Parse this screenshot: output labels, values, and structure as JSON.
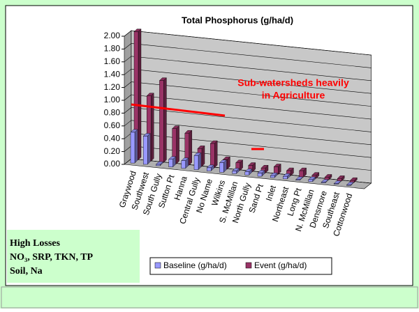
{
  "chart_data": {
    "type": "bar3d",
    "title": "Total Phosphorus (g/ha/d)",
    "categories": [
      "Graywood",
      "Southwest",
      "South Gully",
      "Sutton Pt",
      "Hanna",
      "Central Gully",
      "No Name",
      "Wilkins",
      "S. McMillan",
      "North Gully",
      "Sand Pt",
      "Inlet",
      "Northeast",
      "Long Pt",
      "N. McMillan",
      "Densmore",
      "Southeast",
      "Cottonwood"
    ],
    "series": [
      {
        "name": "Baseline (g/ha/d)",
        "color": "#9999ff",
        "values": [
          0.48,
          0.44,
          0.02,
          0.12,
          0.12,
          0.22,
          0.05,
          0.15,
          0.04,
          0.05,
          0.05,
          0.03,
          0.04,
          0.01,
          0.03,
          0.01,
          0.01,
          0.01
        ]
      },
      {
        "name": "Event (g/ha/d)",
        "color": "#993366",
        "values": [
          2.0,
          1.02,
          1.28,
          0.55,
          0.5,
          0.28,
          0.38,
          0.15,
          0.12,
          0.1,
          0.08,
          0.12,
          0.08,
          0.1,
          0.05,
          0.04,
          0.04,
          0.03
        ]
      }
    ],
    "ylim": [
      0,
      2
    ],
    "yticks": [
      {
        "value": 0,
        "label": "0.00"
      },
      {
        "value": 0.2,
        "label": "0.20"
      },
      {
        "value": 0.4,
        "label": "0.40"
      },
      {
        "value": 0.6,
        "label": "0.60"
      },
      {
        "value": 0.8,
        "label": "0.80"
      },
      {
        "value": 1,
        "label": "1.00"
      },
      {
        "value": 1.2,
        "label": "1.20"
      },
      {
        "value": 1.4,
        "label": "1.40"
      },
      {
        "value": 1.6,
        "label": "1.60"
      },
      {
        "value": 1.8,
        "label": "1.80"
      },
      {
        "value": 2,
        "label": "2.00"
      }
    ],
    "grid": true,
    "annotation": [
      "Sub-watersheds heavily",
      "in Agriculture"
    ],
    "note": [
      "High Losses",
      "NO₃, SRP, TKN, TP",
      "Soil, Na"
    ]
  }
}
